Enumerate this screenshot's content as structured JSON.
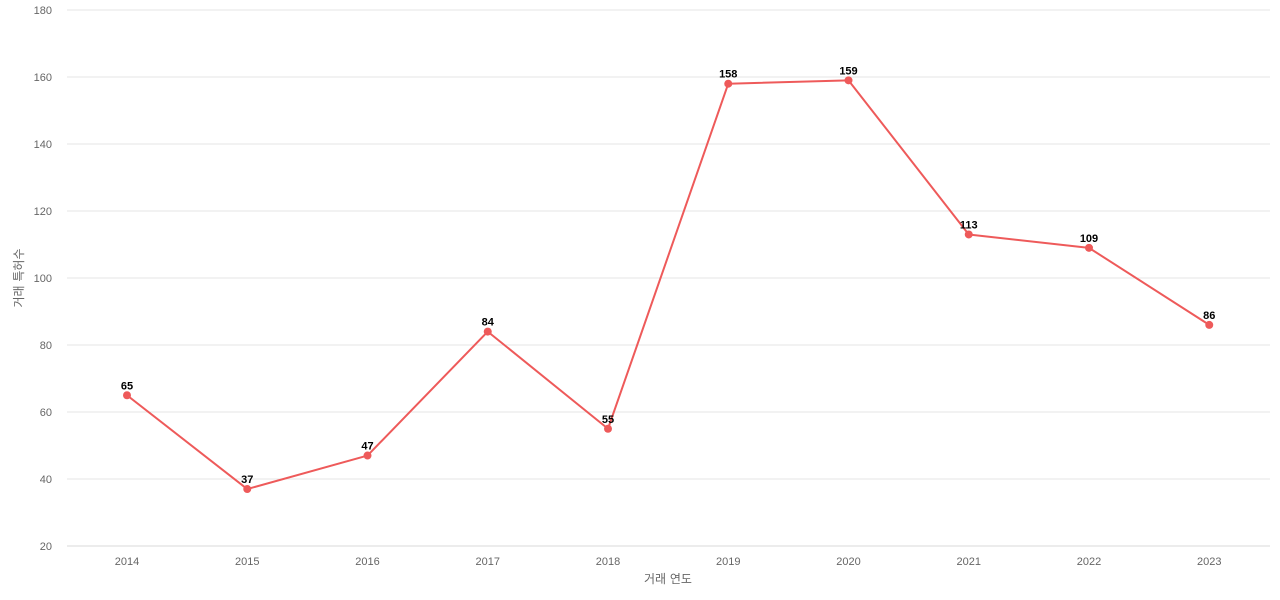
{
  "chart_data": {
    "type": "line",
    "title": "",
    "xlabel": "거래 연도",
    "ylabel": "거래 특허수",
    "categories": [
      "2014",
      "2015",
      "2016",
      "2017",
      "2018",
      "2019",
      "2020",
      "2021",
      "2022",
      "2023"
    ],
    "series": [
      {
        "values": [
          65,
          37,
          47,
          84,
          55,
          158,
          159,
          113,
          109,
          86
        ],
        "color": "#ee5a5a"
      }
    ],
    "ylim": [
      20,
      180
    ],
    "yticks": [
      20,
      40,
      60,
      80,
      100,
      120,
      140,
      160,
      180
    ],
    "grid": true,
    "legend": "none",
    "data_labels": true
  }
}
